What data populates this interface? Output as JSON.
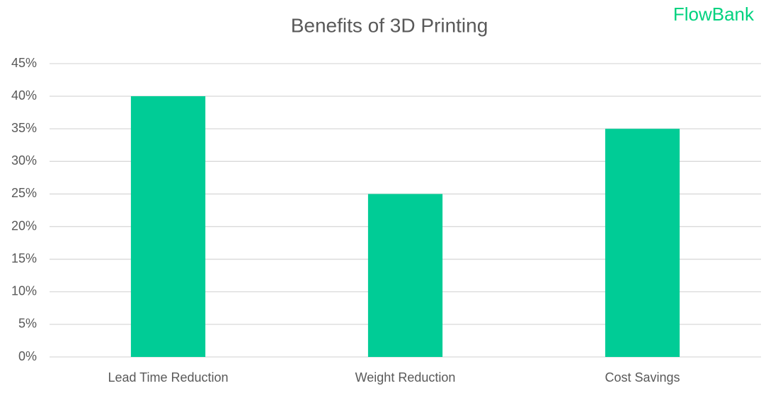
{
  "chart_data": {
    "type": "bar",
    "title": "Benefits of 3D Printing",
    "logo": "FlowBank",
    "categories": [
      "Lead Time Reduction",
      "Weight Reduction",
      "Cost Savings"
    ],
    "values": [
      40,
      25,
      35
    ],
    "color": "#00cc96",
    "ylim": [
      0,
      45
    ],
    "yticks": [
      {
        "value": 0,
        "label": "0%"
      },
      {
        "value": 5,
        "label": "5%"
      },
      {
        "value": 10,
        "label": "10%"
      },
      {
        "value": 15,
        "label": "15%"
      },
      {
        "value": 20,
        "label": "20%"
      },
      {
        "value": 25,
        "label": "25%"
      },
      {
        "value": 30,
        "label": "30%"
      },
      {
        "value": 35,
        "label": "35%"
      },
      {
        "value": 40,
        "label": "40%"
      },
      {
        "value": 45,
        "label": "45%"
      }
    ],
    "grid": true
  }
}
